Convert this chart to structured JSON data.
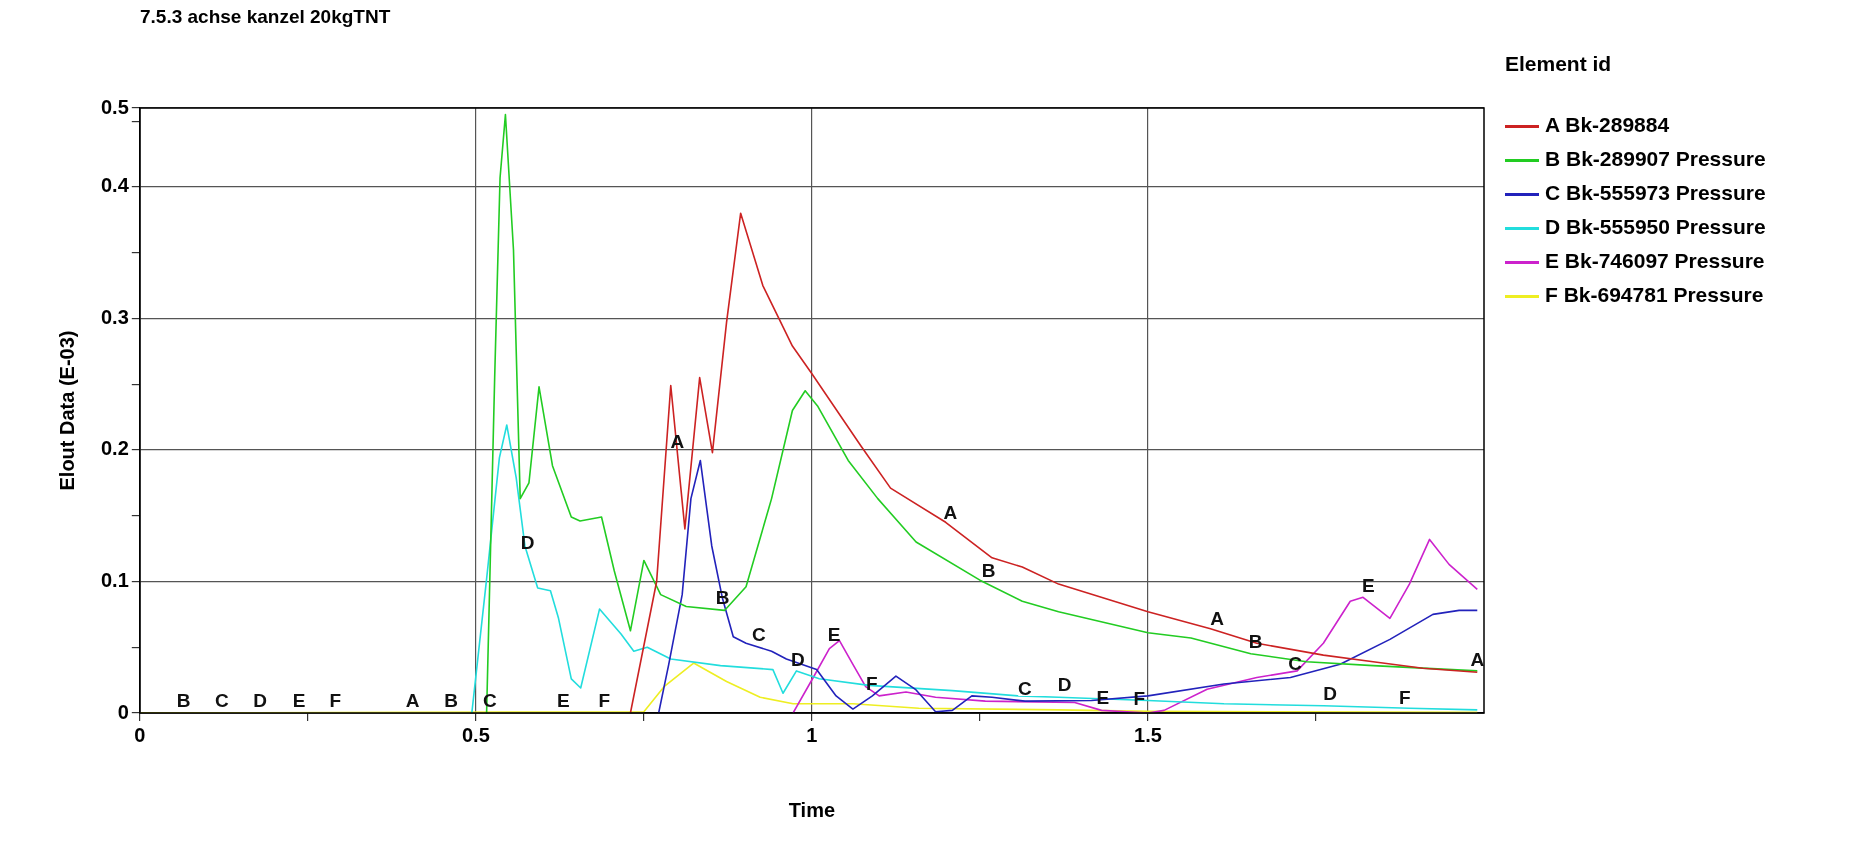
{
  "chart_data": {
    "type": "line",
    "title": "7.5.3 achse kanzel 20kgTNT",
    "xlabel": "Time",
    "ylabel": "Elout Data (E-03)",
    "legend_title": "Element id",
    "legend": "right",
    "grid": true,
    "xlim": [
      0,
      2
    ],
    "xticks": [
      0,
      {
        "value": 0.25,
        "label": null
      },
      0.5,
      {
        "value": 0.75,
        "label": null
      },
      1,
      {
        "value": 1.25,
        "label": null
      },
      1.5,
      {
        "value": 1.75,
        "label": null
      }
    ],
    "ylim": [
      0,
      0.46
    ],
    "yticks": [
      0,
      {
        "value": 0.05,
        "label": null
      },
      0.1,
      {
        "value": 0.15,
        "label": null
      },
      0.2,
      {
        "value": 0.25,
        "label": null
      },
      0.3,
      {
        "value": 0.35,
        "label": null
      },
      0.4,
      {
        "value": 0.45,
        "label": null
      },
      {
        "value": 0.46,
        "label": "0.5"
      }
    ],
    "series": [
      {
        "name": "A Bk-289884",
        "color": "#cc2222",
        "x": [
          0.73,
          0.769,
          0.79,
          0.811,
          0.833,
          0.852,
          0.873,
          0.894,
          0.927,
          0.971,
          1.0,
          1.073,
          1.117,
          1.199,
          1.268,
          1.313,
          1.367,
          1.5,
          1.593,
          1.662,
          1.761,
          1.835,
          1.909,
          1.99
        ],
        "values": [
          0,
          0.1,
          0.249,
          0.14,
          0.255,
          0.198,
          0.297,
          0.38,
          0.325,
          0.279,
          0.258,
          0.203,
          0.171,
          0.145,
          0.118,
          0.111,
          0.098,
          0.077,
          0.064,
          0.053,
          0.044,
          0.039,
          0.034,
          0.031
        ]
      },
      {
        "name": "B Bk-289907 Pressure",
        "color": "#22cc22",
        "x": [
          0.516,
          0.528,
          0.536,
          0.544,
          0.556,
          0.566,
          0.579,
          0.594,
          0.614,
          0.642,
          0.655,
          0.687,
          0.706,
          0.73,
          0.75,
          0.775,
          0.813,
          0.87,
          0.902,
          0.94,
          0.971,
          0.99,
          1.009,
          1.054,
          1.098,
          1.155,
          1.25,
          1.313,
          1.367,
          1.5,
          1.564,
          1.653,
          1.736,
          1.835,
          1.99
        ],
        "values": [
          0,
          0.255,
          0.407,
          0.455,
          0.352,
          0.163,
          0.175,
          0.248,
          0.188,
          0.149,
          0.146,
          0.149,
          0.108,
          0.0625,
          0.116,
          0.09,
          0.081,
          0.078,
          0.096,
          0.163,
          0.23,
          0.245,
          0.233,
          0.192,
          0.163,
          0.13,
          0.101,
          0.085,
          0.077,
          0.061,
          0.057,
          0.045,
          0.039,
          0.036,
          0.032
        ]
      },
      {
        "name": "C Bk-555973 Pressure",
        "color": "#2222bb",
        "x": [
          0.772,
          0.787,
          0.807,
          0.82,
          0.834,
          0.851,
          0.867,
          0.883,
          0.902,
          0.94,
          0.962,
          1.007,
          1.036,
          1.061,
          1.09,
          1.125,
          1.154,
          1.184,
          1.209,
          1.238,
          1.268,
          1.317,
          1.416,
          1.5,
          1.613,
          1.712,
          1.786,
          1.86,
          1.924,
          1.963,
          1.99
        ],
        "values": [
          0,
          0.037,
          0.09,
          0.163,
          0.192,
          0.127,
          0.087,
          0.058,
          0.053,
          0.047,
          0.041,
          0.033,
          0.013,
          0.003,
          0.013,
          0.028,
          0.018,
          0.001,
          0.002,
          0.013,
          0.012,
          0.009,
          0.0095,
          0.013,
          0.022,
          0.027,
          0.037,
          0.056,
          0.075,
          0.078,
          0.078
        ]
      },
      {
        "name": "D Bk-555950 Pressure",
        "color": "#22dddd",
        "x": [
          0.494,
          0.516,
          0.535,
          0.546,
          0.56,
          0.573,
          0.592,
          0.611,
          0.623,
          0.642,
          0.656,
          0.684,
          0.716,
          0.735,
          0.755,
          0.79,
          0.864,
          0.942,
          0.957,
          0.977,
          1.011,
          1.085,
          1.209,
          1.307,
          1.367,
          1.5,
          1.613,
          1.761,
          1.889,
          1.99
        ],
        "values": [
          0,
          0.102,
          0.194,
          0.219,
          0.179,
          0.127,
          0.095,
          0.093,
          0.072,
          0.026,
          0.019,
          0.079,
          0.06,
          0.047,
          0.05,
          0.041,
          0.036,
          0.033,
          0.015,
          0.032,
          0.026,
          0.021,
          0.017,
          0.013,
          0.012,
          0.0095,
          0.007,
          0.0055,
          0.0036,
          0.0024
        ]
      },
      {
        "name": "E Bk-746097 Pressure",
        "color": "#cc22cc",
        "x": [
          0.972,
          1.002,
          1.026,
          1.041,
          1.061,
          1.08,
          1.1,
          1.14,
          1.184,
          1.258,
          1.391,
          1.431,
          1.5,
          1.524,
          1.588,
          1.662,
          1.722,
          1.761,
          1.801,
          1.82,
          1.86,
          1.889,
          1.919,
          1.948,
          1.99
        ],
        "values": [
          0,
          0.027,
          0.049,
          0.055,
          0.037,
          0.02,
          0.013,
          0.016,
          0.012,
          0.009,
          0.008,
          0.002,
          0,
          0.002,
          0.018,
          0.027,
          0.032,
          0.053,
          0.085,
          0.088,
          0.072,
          0.098,
          0.132,
          0.113,
          0.094
        ]
      },
      {
        "name": "F Bk-694781 Pressure",
        "color": "#eeee22",
        "x": [
          0,
          0.75,
          0.78,
          0.824,
          0.873,
          0.923,
          0.972,
          1.061,
          1.159,
          1.367,
          1.5,
          1.99
        ],
        "values": [
          0,
          0.001,
          0.02,
          0.038,
          0.024,
          0.012,
          0.007,
          0.007,
          0.0036,
          0.0024,
          0.0012,
          0.0005
        ]
      }
    ],
    "annotations": [
      {
        "text": "B",
        "x": 0.065,
        "y": 0
      },
      {
        "text": "C",
        "x": 0.122,
        "y": 0
      },
      {
        "text": "D",
        "x": 0.179,
        "y": 0
      },
      {
        "text": "E",
        "x": 0.237,
        "y": 0
      },
      {
        "text": "F",
        "x": 0.291,
        "y": 0
      },
      {
        "text": "A",
        "x": 0.406,
        "y": 0
      },
      {
        "text": "B",
        "x": 0.463,
        "y": 0
      },
      {
        "text": "C",
        "x": 0.521,
        "y": 0
      },
      {
        "text": "E",
        "x": 0.63,
        "y": 0
      },
      {
        "text": "F",
        "x": 0.691,
        "y": 0
      },
      {
        "text": "D",
        "x": 0.577,
        "y": 0.12
      },
      {
        "text": "A",
        "x": 0.8,
        "y": 0.197
      },
      {
        "text": "B",
        "x": 0.867,
        "y": 0.078
      },
      {
        "text": "C",
        "x": 0.921,
        "y": 0.05
      },
      {
        "text": "D",
        "x": 0.979,
        "y": 0.031
      },
      {
        "text": "E",
        "x": 1.033,
        "y": 0.05
      },
      {
        "text": "F",
        "x": 1.089,
        "y": 0.013
      },
      {
        "text": "A",
        "x": 1.206,
        "y": 0.143
      },
      {
        "text": "B",
        "x": 1.263,
        "y": 0.099
      },
      {
        "text": "C",
        "x": 1.317,
        "y": 0.009
      },
      {
        "text": "D",
        "x": 1.376,
        "y": 0.012
      },
      {
        "text": "E",
        "x": 1.433,
        "y": 0.002
      },
      {
        "text": "F",
        "x": 1.487,
        "y": 0.001
      },
      {
        "text": "A",
        "x": 1.603,
        "y": 0.062
      },
      {
        "text": "B",
        "x": 1.66,
        "y": 0.045
      },
      {
        "text": "C",
        "x": 1.719,
        "y": 0.028
      },
      {
        "text": "D",
        "x": 1.771,
        "y": 0.0054
      },
      {
        "text": "E",
        "x": 1.828,
        "y": 0.087
      },
      {
        "text": "F",
        "x": 1.882,
        "y": 0.002
      },
      {
        "text": "A",
        "x": 1.99,
        "y": 0.031
      }
    ]
  }
}
